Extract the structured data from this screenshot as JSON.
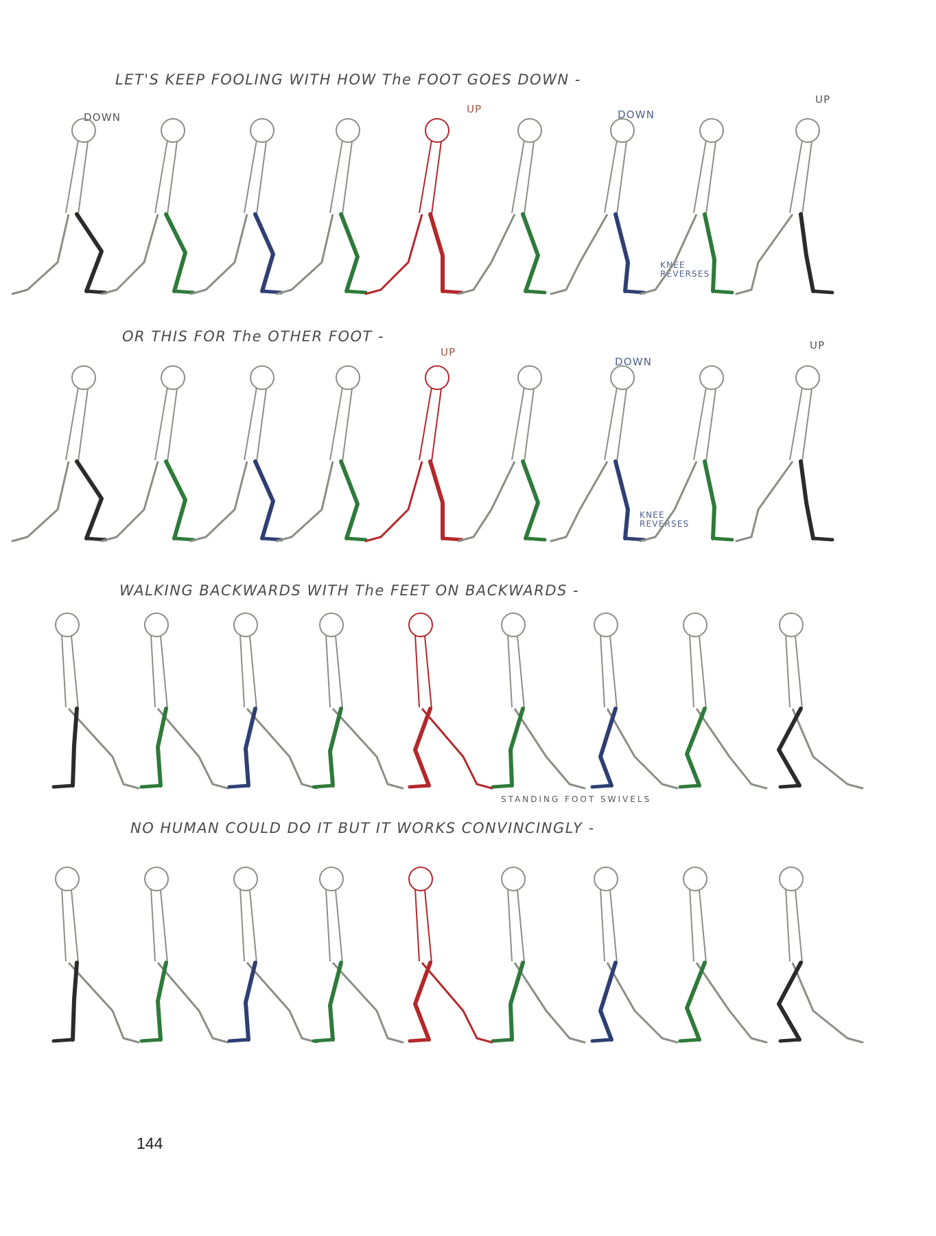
{
  "colors": {
    "black": "#2b2b2b",
    "green": "#2f7a3a",
    "blue": "#2f3f73",
    "red": "#b3282b",
    "outline": "#8a8f86"
  },
  "rows": [
    {
      "caption": "LET'S KEEP FOOLING WITH HOW The FOOT GOES DOWN -",
      "figure_colors": [
        "black",
        "green",
        "blue",
        "green",
        "red",
        "green",
        "blue",
        "green",
        "black"
      ],
      "notes": {
        "down_1": "DOWN",
        "up_1": "UP",
        "down_2": "DOWN",
        "up_2": "UP",
        "knee_reverses": "KNEE REVERSES"
      }
    },
    {
      "caption": "OR THIS FOR The OTHER FOOT -",
      "figure_colors": [
        "black",
        "green",
        "blue",
        "green",
        "red",
        "green",
        "blue",
        "green",
        "black"
      ],
      "notes": {
        "up_1": "UP",
        "down_1": "DOWN",
        "up_2": "UP",
        "knee_reverses": "KNEE REVERSES"
      }
    },
    {
      "caption": "WALKING BACKWARDS WITH The FEET ON BACKWARDS -",
      "figure_colors": [
        "black",
        "green",
        "blue",
        "green",
        "red",
        "green",
        "blue",
        "green",
        "black"
      ],
      "notes": {
        "standing_foot": "STANDING FOOT SWIVELS"
      }
    },
    {
      "caption": "NO HUMAN COULD DO IT BUT IT WORKS CONVINCINGLY -",
      "figure_colors": [
        "black",
        "green",
        "blue",
        "green",
        "red",
        "green",
        "blue",
        "green",
        "black"
      ],
      "notes": {}
    }
  ],
  "page_number": "144"
}
